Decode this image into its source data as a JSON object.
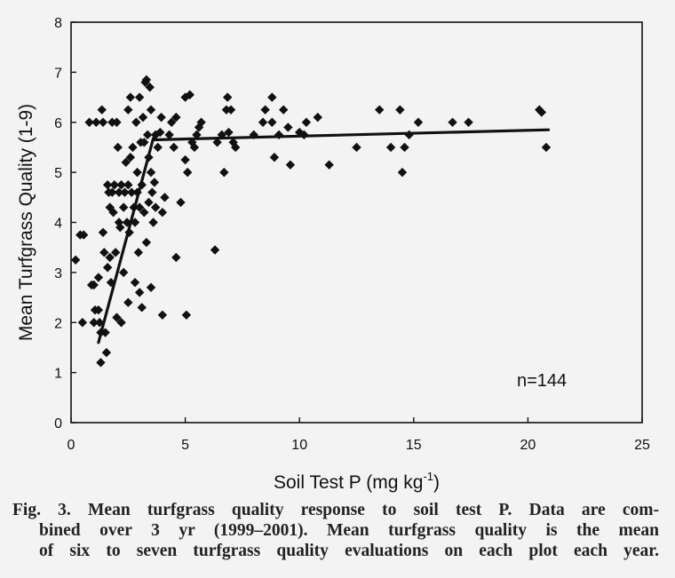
{
  "chart_data": {
    "type": "scatter",
    "xlabel": "Soil Test P (mg kg",
    "xlabel_sup": "-1",
    "xlabel_end": ")",
    "ylabel": "Mean Turfgrass Quality (1-9)",
    "xlim": [
      0,
      25
    ],
    "ylim": [
      0,
      8
    ],
    "x_ticks": [
      "0",
      "5",
      "10",
      "15",
      "20",
      "25"
    ],
    "y_ticks": [
      "0",
      "1",
      "2",
      "3",
      "4",
      "5",
      "6",
      "7",
      "8"
    ],
    "annotation": "n=144",
    "grid": false,
    "marker": "diamond",
    "marker_color": "#111111",
    "line_color": "#111111",
    "points": [
      [
        0.2,
        3.25
      ],
      [
        0.4,
        3.75
      ],
      [
        0.55,
        3.75
      ],
      [
        0.5,
        2.0
      ],
      [
        0.8,
        6.0
      ],
      [
        0.9,
        2.75
      ],
      [
        1.0,
        2.75
      ],
      [
        1.0,
        2.0
      ],
      [
        1.05,
        2.25
      ],
      [
        1.1,
        6.0
      ],
      [
        1.2,
        2.9
      ],
      [
        1.2,
        2.25
      ],
      [
        1.25,
        2.0
      ],
      [
        1.3,
        1.8
      ],
      [
        1.3,
        1.2
      ],
      [
        1.35,
        6.25
      ],
      [
        1.4,
        6.0
      ],
      [
        1.4,
        3.8
      ],
      [
        1.45,
        3.4
      ],
      [
        1.5,
        1.8
      ],
      [
        1.55,
        1.4
      ],
      [
        1.6,
        3.1
      ],
      [
        1.6,
        4.75
      ],
      [
        1.65,
        4.6
      ],
      [
        1.7,
        4.3
      ],
      [
        1.7,
        3.3
      ],
      [
        1.75,
        2.8
      ],
      [
        1.8,
        6.0
      ],
      [
        1.8,
        4.6
      ],
      [
        1.85,
        4.2
      ],
      [
        1.9,
        4.75
      ],
      [
        1.95,
        3.4
      ],
      [
        2.0,
        2.1
      ],
      [
        2.0,
        6.0
      ],
      [
        2.05,
        5.5
      ],
      [
        2.1,
        4.6
      ],
      [
        2.1,
        4.0
      ],
      [
        2.15,
        3.9
      ],
      [
        2.2,
        4.75
      ],
      [
        2.2,
        2.0
      ],
      [
        2.3,
        4.3
      ],
      [
        2.3,
        3.0
      ],
      [
        2.35,
        4.6
      ],
      [
        2.4,
        5.2
      ],
      [
        2.45,
        4.0
      ],
      [
        2.5,
        6.25
      ],
      [
        2.5,
        4.75
      ],
      [
        2.5,
        2.4
      ],
      [
        2.55,
        3.8
      ],
      [
        2.6,
        6.5
      ],
      [
        2.6,
        5.3
      ],
      [
        2.65,
        4.6
      ],
      [
        2.7,
        5.5
      ],
      [
        2.75,
        4.3
      ],
      [
        2.8,
        4.0
      ],
      [
        2.8,
        2.8
      ],
      [
        2.85,
        6.0
      ],
      [
        2.9,
        5.0
      ],
      [
        2.9,
        4.6
      ],
      [
        2.95,
        3.4
      ],
      [
        3.0,
        6.5
      ],
      [
        3.0,
        4.3
      ],
      [
        3.0,
        2.6
      ],
      [
        3.05,
        5.6
      ],
      [
        3.1,
        4.75
      ],
      [
        3.1,
        2.3
      ],
      [
        3.15,
        6.1
      ],
      [
        3.2,
        5.6
      ],
      [
        3.2,
        4.2
      ],
      [
        3.25,
        6.8
      ],
      [
        3.3,
        6.85
      ],
      [
        3.3,
        3.6
      ],
      [
        3.35,
        5.75
      ],
      [
        3.4,
        5.3
      ],
      [
        3.4,
        4.4
      ],
      [
        3.45,
        6.7
      ],
      [
        3.5,
        6.25
      ],
      [
        3.5,
        5.0
      ],
      [
        3.5,
        2.7
      ],
      [
        3.55,
        4.6
      ],
      [
        3.6,
        4.0
      ],
      [
        3.65,
        4.8
      ],
      [
        3.7,
        5.75
      ],
      [
        3.7,
        4.3
      ],
      [
        3.8,
        5.5
      ],
      [
        3.9,
        5.8
      ],
      [
        3.95,
        6.1
      ],
      [
        4.0,
        4.2
      ],
      [
        4.0,
        2.15
      ],
      [
        4.1,
        4.5
      ],
      [
        4.3,
        5.75
      ],
      [
        4.4,
        6.0
      ],
      [
        4.5,
        5.5
      ],
      [
        4.6,
        6.1
      ],
      [
        4.6,
        3.3
      ],
      [
        4.8,
        4.4
      ],
      [
        5.0,
        6.5
      ],
      [
        5.0,
        5.25
      ],
      [
        5.05,
        2.15
      ],
      [
        5.1,
        5.0
      ],
      [
        5.2,
        6.55
      ],
      [
        5.3,
        5.6
      ],
      [
        5.4,
        5.5
      ],
      [
        5.5,
        5.75
      ],
      [
        5.6,
        5.9
      ],
      [
        5.7,
        6.0
      ],
      [
        6.3,
        3.45
      ],
      [
        6.4,
        5.6
      ],
      [
        6.6,
        5.75
      ],
      [
        6.7,
        5.0
      ],
      [
        6.8,
        6.25
      ],
      [
        6.85,
        6.5
      ],
      [
        6.9,
        5.8
      ],
      [
        7.0,
        6.25
      ],
      [
        7.1,
        5.6
      ],
      [
        7.2,
        5.5
      ],
      [
        8.0,
        5.75
      ],
      [
        8.4,
        6.0
      ],
      [
        8.5,
        6.25
      ],
      [
        8.8,
        6.0
      ],
      [
        8.8,
        6.5
      ],
      [
        8.9,
        5.3
      ],
      [
        9.1,
        5.75
      ],
      [
        9.3,
        6.25
      ],
      [
        9.5,
        5.9
      ],
      [
        9.6,
        5.15
      ],
      [
        10.0,
        5.8
      ],
      [
        10.2,
        5.75
      ],
      [
        10.3,
        6.0
      ],
      [
        10.8,
        6.1
      ],
      [
        11.3,
        5.15
      ],
      [
        12.5,
        5.5
      ],
      [
        13.5,
        6.25
      ],
      [
        14.0,
        5.5
      ],
      [
        14.4,
        6.25
      ],
      [
        14.5,
        5.0
      ],
      [
        14.6,
        5.5
      ],
      [
        14.8,
        5.75
      ],
      [
        15.2,
        6.0
      ],
      [
        16.7,
        6.0
      ],
      [
        17.4,
        6.0
      ],
      [
        20.5,
        6.25
      ],
      [
        20.8,
        5.5
      ],
      [
        20.6,
        6.2
      ]
    ],
    "fit_lines": [
      [
        [
          1.2,
          1.6
        ],
        [
          3.6,
          5.68
        ]
      ],
      [
        [
          3.6,
          5.65
        ],
        [
          20.9,
          5.85
        ]
      ]
    ]
  },
  "caption": {
    "line1": "Fig. 3. Mean turfgrass quality response to soil test P. Data are com-",
    "line2": "bined over 3 yr (1999–2001). Mean turfgrass quality is the mean",
    "line3": "of six to seven turfgrass quality evaluations on each plot each year."
  }
}
